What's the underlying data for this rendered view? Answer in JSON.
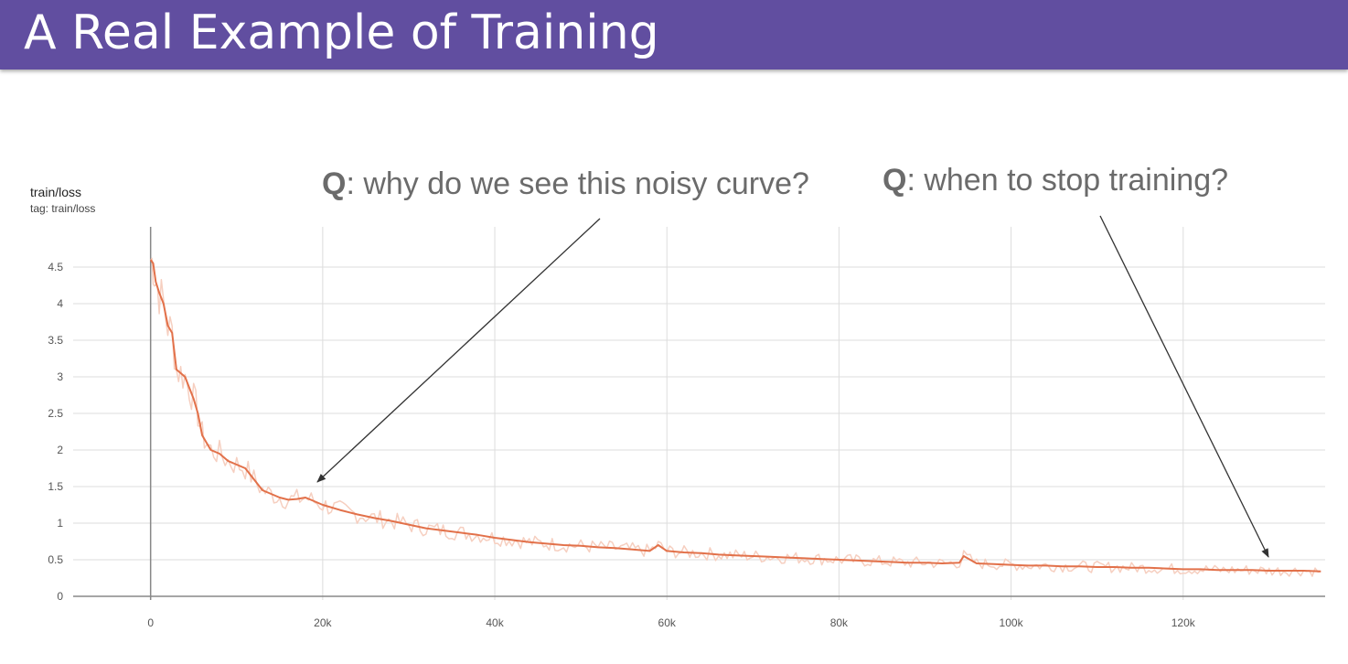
{
  "slide": {
    "title": "A Real Example of Training"
  },
  "annotations": [
    {
      "q": "Q",
      "text": ": why do we see this noisy curve?"
    },
    {
      "q": "Q",
      "text": ": when to stop training?"
    }
  ],
  "colors": {
    "title_bar": "#614ea0",
    "smoothed": "#e2714a",
    "raw": "#f6cfc0"
  },
  "chart_data": {
    "type": "line",
    "title": "train/loss",
    "subtitle": "tag: train/loss",
    "xlim": [
      -9000,
      136500
    ],
    "ylim": [
      -0.05,
      5.05
    ],
    "x_ticks": [
      0,
      20000,
      40000,
      60000,
      80000,
      100000,
      120000
    ],
    "x_tick_labels": [
      "0",
      "20k",
      "40k",
      "60k",
      "80k",
      "100k",
      "120k"
    ],
    "y_ticks": [
      0,
      0.5,
      1,
      1.5,
      2,
      2.5,
      3,
      3.5,
      4,
      4.5
    ],
    "y_tick_labels": [
      "0",
      "0.5",
      "1",
      "1.5",
      "2",
      "2.5",
      "3",
      "3.5",
      "4",
      "4.5"
    ],
    "grid": true,
    "series": [
      {
        "x": [
          0,
          300,
          600,
          1000,
          1500,
          2000,
          2500,
          3000,
          3500,
          4000,
          4500,
          5000,
          5500,
          6000,
          6500,
          7000,
          8000,
          9000,
          10000,
          11000,
          12000,
          13000,
          14000,
          15000,
          16000,
          17000,
          18000,
          19000,
          20000,
          22000,
          24000,
          26000,
          28000,
          30000,
          32000,
          34000,
          36000,
          38000,
          40000,
          42000,
          44000,
          46000,
          48000,
          50000,
          52000,
          54000,
          56000,
          58000,
          59000,
          60000,
          62000,
          64000,
          66000,
          68000,
          70000,
          72000,
          74000,
          76000,
          78000,
          80000,
          82000,
          84000,
          86000,
          88000,
          90000,
          92000,
          94000,
          94500,
          96000,
          98000,
          100000,
          102000,
          104000,
          106000,
          108000,
          110000,
          112000,
          114000,
          116000,
          118000,
          120000,
          122000,
          124000,
          126000,
          128000,
          130000,
          132000,
          134000,
          136000
        ],
        "y": [
          4.6,
          4.55,
          4.3,
          4.15,
          4.0,
          3.7,
          3.6,
          3.1,
          3.05,
          3.0,
          2.85,
          2.7,
          2.5,
          2.2,
          2.1,
          2.0,
          1.95,
          1.85,
          1.8,
          1.75,
          1.6,
          1.45,
          1.4,
          1.35,
          1.32,
          1.33,
          1.35,
          1.3,
          1.25,
          1.18,
          1.12,
          1.07,
          1.03,
          0.98,
          0.93,
          0.9,
          0.87,
          0.84,
          0.8,
          0.77,
          0.74,
          0.72,
          0.7,
          0.69,
          0.67,
          0.66,
          0.64,
          0.62,
          0.7,
          0.62,
          0.6,
          0.59,
          0.57,
          0.56,
          0.55,
          0.54,
          0.53,
          0.52,
          0.51,
          0.5,
          0.49,
          0.48,
          0.47,
          0.46,
          0.46,
          0.45,
          0.46,
          0.55,
          0.45,
          0.44,
          0.43,
          0.42,
          0.42,
          0.41,
          0.41,
          0.4,
          0.4,
          0.39,
          0.39,
          0.38,
          0.37,
          0.37,
          0.36,
          0.36,
          0.36,
          0.35,
          0.35,
          0.35,
          0.34
        ]
      }
    ]
  }
}
